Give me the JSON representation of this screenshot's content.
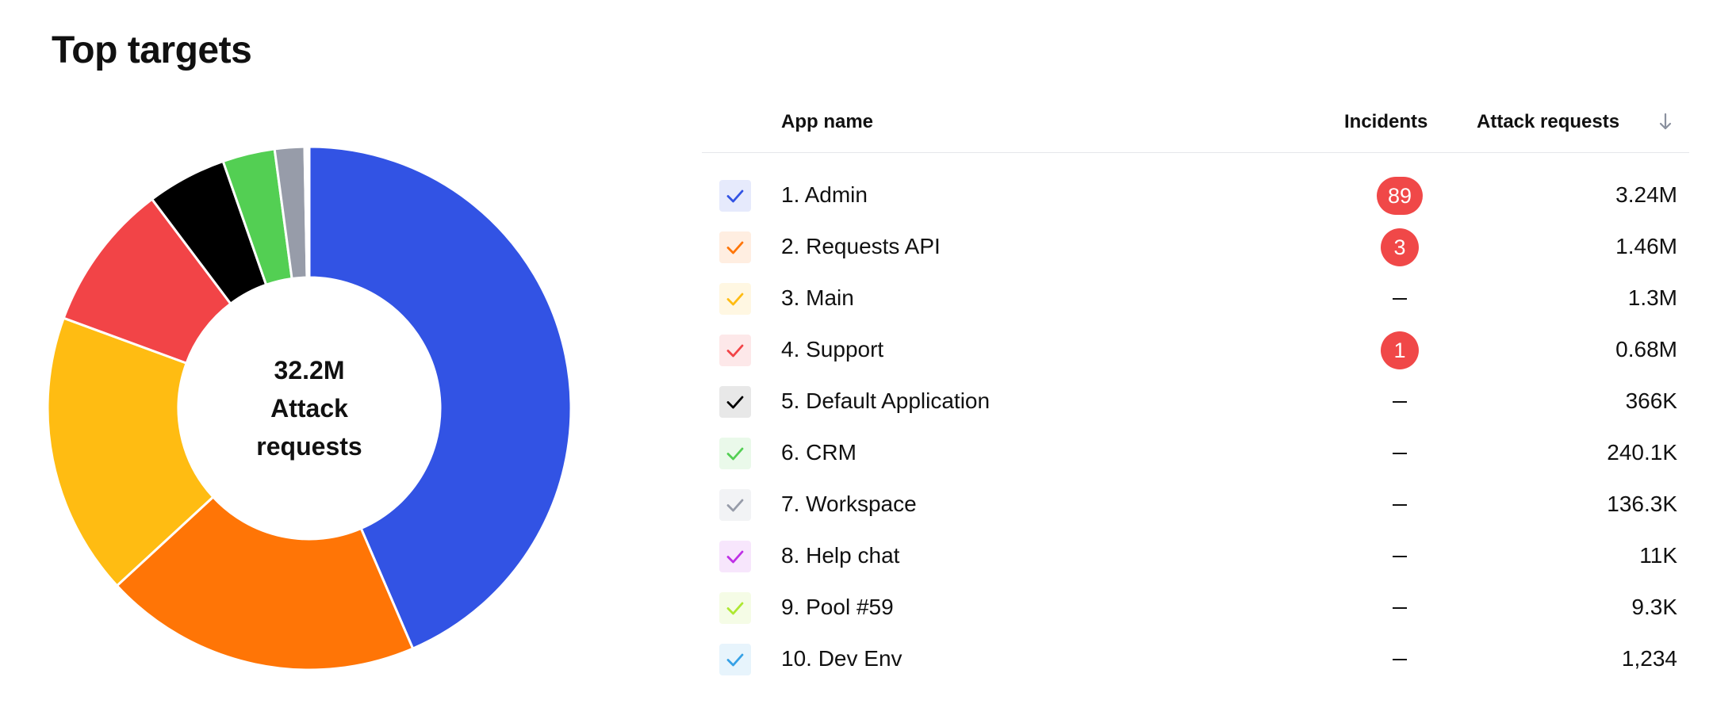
{
  "page": {
    "title": "Top targets"
  },
  "donut": {
    "center_value": "32.2M",
    "center_label_1": "Attack",
    "center_label_2": "requests"
  },
  "chart_data": {
    "type": "pie",
    "categories": [
      "Admin",
      "Requests API",
      "Main",
      "Support",
      "Default Application",
      "CRM",
      "Workspace",
      "Help chat",
      "Pool #59",
      "Dev Env"
    ],
    "values": [
      3.24,
      1.46,
      1.3,
      0.68,
      0.366,
      0.2401,
      0.1363,
      0.011,
      0.0093,
      0.001234
    ],
    "colors": [
      "#3253e4",
      "#ff7506",
      "#ffbc12",
      "#f24447",
      "#000000",
      "#53cf53",
      "#979ca9",
      "#bf30e6",
      "#aee832",
      "#36a1e6"
    ],
    "donut": true
  },
  "table": {
    "headers": {
      "name": "App name",
      "incidents": "Incidents",
      "attack": "Attack requests"
    },
    "sort_icon": "arrow-down-icon",
    "rows": [
      {
        "name": "1. Admin",
        "incidents": "89",
        "attack": "3.24M",
        "color": "#3253e4"
      },
      {
        "name": "2. Requests API",
        "incidents": "3",
        "attack": "1.46M",
        "color": "#ff7506"
      },
      {
        "name": "3. Main",
        "incidents": "",
        "attack": "1.3M",
        "color": "#ffbc12"
      },
      {
        "name": "4. Support",
        "incidents": "1",
        "attack": "0.68M",
        "color": "#f24447"
      },
      {
        "name": "5. Default Application",
        "incidents": "",
        "attack": "366K",
        "color": "#000000"
      },
      {
        "name": "6. CRM",
        "incidents": "",
        "attack": "240.1K",
        "color": "#53cf53"
      },
      {
        "name": "7. Workspace",
        "incidents": "",
        "attack": "136.3K",
        "color": "#979ca9"
      },
      {
        "name": "8. Help chat",
        "incidents": "",
        "attack": "11K",
        "color": "#bf30e6"
      },
      {
        "name": "9. Pool #59",
        "incidents": "",
        "attack": "9.3K",
        "color": "#aee832"
      },
      {
        "name": "10. Dev Env",
        "incidents": "",
        "attack": "1,234",
        "color": "#36a1e6"
      }
    ]
  }
}
